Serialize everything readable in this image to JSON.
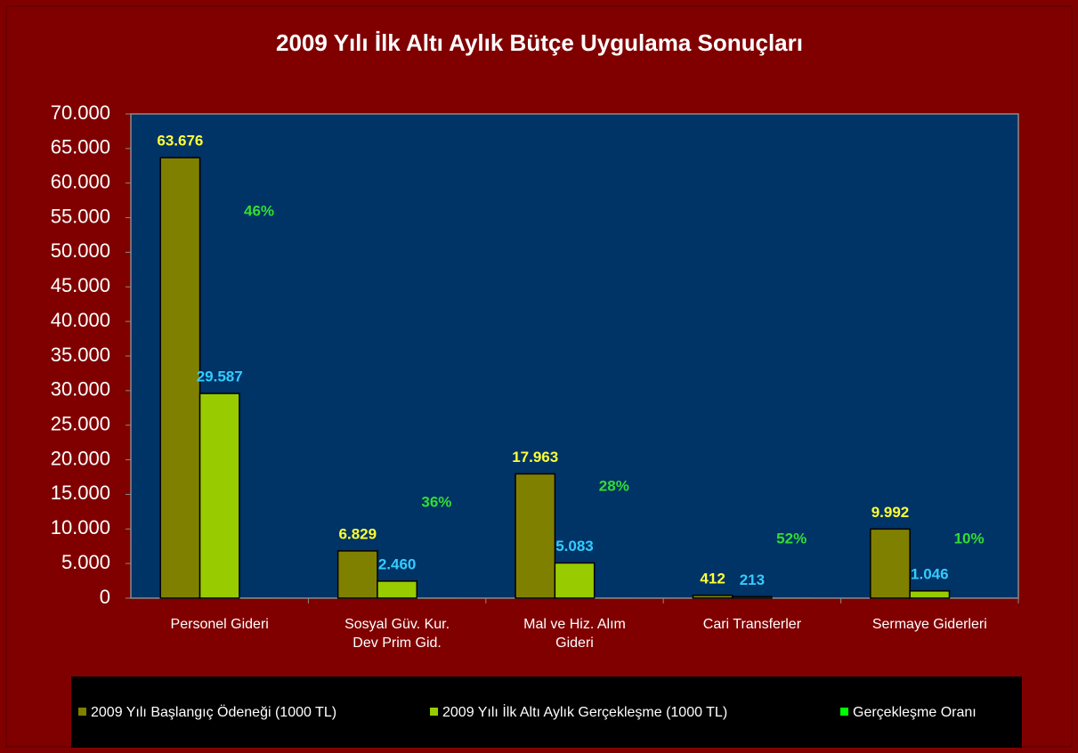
{
  "chart_data": {
    "type": "bar",
    "title": "2009 Yılı İlk Altı Aylık Bütçe Uygulama Sonuçları",
    "categories": [
      "Personel Gideri",
      "Sosyal Güv. Kur.\nDev Prim Gid.",
      "Mal ve Hiz. Alım\nGideri",
      "Cari Transferler",
      "Sermaye  Giderleri"
    ],
    "series": [
      {
        "name": "2009 Yılı Başlangıç Ödeneği (1000 TL)",
        "color": "#808000",
        "values": [
          63676,
          6829,
          17963,
          412,
          9992
        ],
        "value_labels": [
          "63.676",
          "6.829",
          "17.963",
          "412",
          "9.992"
        ],
        "label_color": "#ffff33"
      },
      {
        "name": "2009 Yılı İlk Altı Aylık Gerçekleşme (1000 TL)",
        "color": "#99cc00",
        "values": [
          29587,
          2460,
          5083,
          213,
          1046
        ],
        "value_labels": [
          "29.587",
          "2.460",
          "5.083",
          "213",
          "1.046"
        ],
        "label_color": "#33ccff"
      },
      {
        "name": "Gerçekleşme Oranı",
        "color": "#00ff00",
        "values": [
          46,
          36,
          28,
          52,
          10
        ],
        "value_labels": [
          "46%",
          "36%",
          "28%",
          "52%",
          "10%"
        ],
        "label_color": "#33dd33"
      }
    ],
    "ylim": [
      0,
      70000
    ],
    "yticks": [
      0,
      {
        "value": 5000,
        "label": "5.000"
      },
      {
        "value": 10000,
        "label": "10.000"
      },
      {
        "value": 15000,
        "label": "15.000"
      },
      {
        "value": 20000,
        "label": "20.000"
      },
      {
        "value": 25000,
        "label": "25.000"
      },
      {
        "value": 30000,
        "label": "30.000"
      },
      {
        "value": 35000,
        "label": "35.000"
      },
      {
        "value": 40000,
        "label": "40.000"
      },
      {
        "value": 45000,
        "label": "45.000"
      },
      {
        "value": 50000,
        "label": "50.000"
      },
      {
        "value": 55000,
        "label": "55.000"
      },
      {
        "value": 60000,
        "label": "60.000"
      },
      {
        "value": 65000,
        "label": "65.000"
      },
      {
        "value": {
          "value": 70000
        },
        "label": "70.000"
      }
    ],
    "legend": "bottom"
  }
}
